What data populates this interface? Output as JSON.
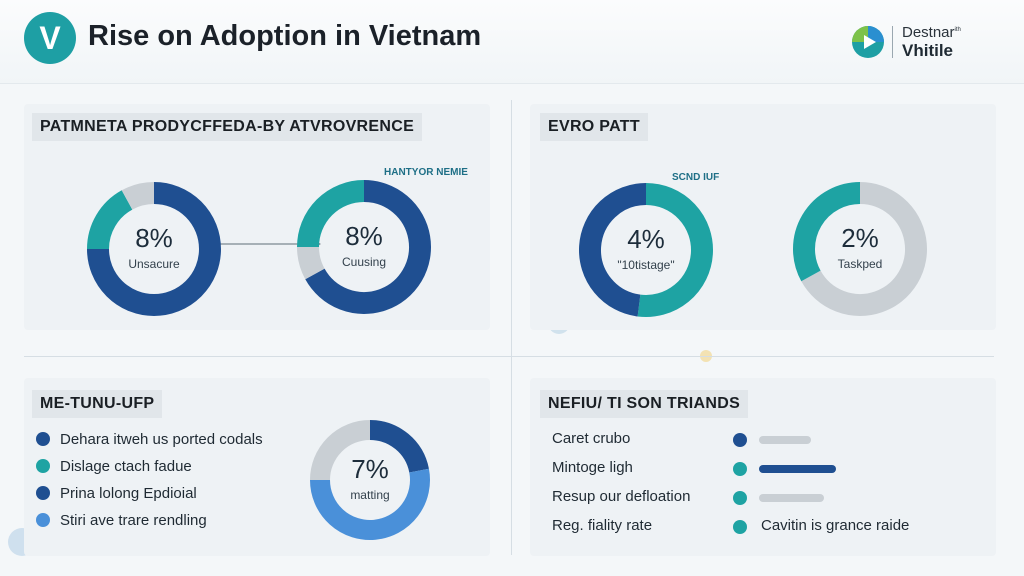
{
  "header": {
    "logo_letter": "V",
    "title": "Rise on Adoption in Vietnam",
    "brand_line1": "Destnar",
    "brand_sup": "ith",
    "brand_line2": "Vhitile"
  },
  "panels": {
    "top_left_title": "PATMNETA PRODYCFFEDA-BY ATVROVRENCE",
    "top_right_title": "EVRO PATT",
    "bottom_left_title": "ME-TUNU-UFP",
    "bottom_right_title": "NEFIU/ TI SON TRIANDS"
  },
  "tags": {
    "hantor": "HANTYOR NEMIE",
    "send": "SCND IUF"
  },
  "colors": {
    "navy": "#1f4f91",
    "teal": "#1ea3a3",
    "gray": "#c9cfd4",
    "light_blue": "#4a90d9",
    "accent": "#1e9fa4"
  },
  "chart_data": [
    {
      "type": "pie",
      "value_label": "8%",
      "sub_label": "Unsacure",
      "slices": [
        {
          "color": "navy",
          "value": 75
        },
        {
          "color": "teal",
          "value": 17
        },
        {
          "color": "gray",
          "value": 8
        }
      ]
    },
    {
      "type": "pie",
      "value_label": "8%",
      "sub_label": "Cuusing",
      "slices": [
        {
          "color": "navy",
          "value": 67
        },
        {
          "color": "gray",
          "value": 8
        },
        {
          "color": "teal",
          "value": 25
        }
      ]
    },
    {
      "type": "pie",
      "value_label": "4%",
      "sub_label": "\"10tistage\"",
      "slices": [
        {
          "color": "teal",
          "value": 52
        },
        {
          "color": "navy",
          "value": 48
        }
      ]
    },
    {
      "type": "pie",
      "value_label": "2%",
      "sub_label": "Taskped",
      "slices": [
        {
          "color": "gray",
          "value": 67
        },
        {
          "color": "teal",
          "value": 33
        }
      ]
    },
    {
      "type": "pie",
      "value_label": "7%",
      "sub_label": "matting",
      "slices": [
        {
          "color": "navy",
          "value": 22
        },
        {
          "color": "light_blue",
          "value": 53
        },
        {
          "color": "gray",
          "value": 25
        }
      ]
    }
  ],
  "legend": [
    {
      "label": "Dehara itweh us ported codals",
      "color": "navy"
    },
    {
      "label": "Dislage ctach fadue",
      "color": "teal"
    },
    {
      "label": "Prina lolong Epdioial",
      "color": "navy"
    },
    {
      "label": "Stiri ave trare rendling",
      "color": "light_blue"
    }
  ],
  "trends": [
    {
      "label": "Caret crubo",
      "dot": "navy",
      "bar_color": "gray",
      "bar_fill": 0.58,
      "note": ""
    },
    {
      "label": "Mintoge ligh",
      "dot": "teal",
      "bar_color": "navy",
      "bar_fill": 0.85,
      "note": ""
    },
    {
      "label": "Resup our defloation",
      "dot": "teal",
      "bar_color": "gray",
      "bar_fill": 0.72,
      "note": ""
    },
    {
      "label": "Reg. fiality rate",
      "dot": "teal",
      "bar_color": "",
      "bar_fill": 0,
      "note": "Cavitin is grance raide"
    }
  ]
}
